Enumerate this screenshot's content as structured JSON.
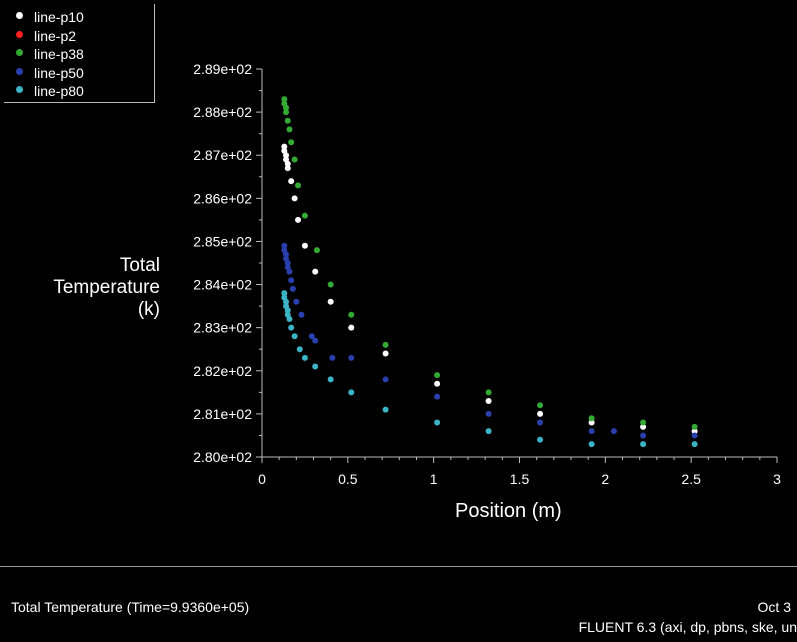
{
  "chart_data": {
    "type": "scatter",
    "title": "Total Temperature  (Time=9.9360e+05)",
    "xlabel": "Position (m)",
    "ylabel": [
      "Total",
      "Temperature",
      "(k)"
    ],
    "xlim": [
      0,
      3
    ],
    "ylim": [
      280.0,
      289.0
    ],
    "x_ticks": [
      0,
      0.5,
      1,
      1.5,
      2,
      2.5,
      3
    ],
    "x_tick_labels": [
      "0",
      "0.5",
      "1",
      "1.5",
      "2",
      "2.5",
      "3"
    ],
    "y_ticks": [
      280.0,
      281.0,
      282.0,
      283.0,
      284.0,
      285.0,
      286.0,
      287.0,
      288.0,
      289.0
    ],
    "y_tick_labels": [
      "2.80e+02",
      "2.81e+02",
      "2.82e+02",
      "2.83e+02",
      "2.84e+02",
      "2.85e+02",
      "2.86e+02",
      "2.87e+02",
      "2.88e+02",
      "2.89e+02"
    ],
    "legend_position": "top-left",
    "grid": false,
    "series": [
      {
        "name": "line-p10",
        "color": "#ffffff",
        "x": [
          0.13,
          0.13,
          0.14,
          0.14,
          0.15,
          0.15,
          0.17,
          0.19,
          0.21,
          0.25,
          0.31,
          0.4,
          0.52,
          0.72,
          1.02,
          1.32,
          1.62,
          1.92,
          2.22,
          2.52
        ],
        "y": [
          287.2,
          287.1,
          287.0,
          286.9,
          286.8,
          286.7,
          286.4,
          286.0,
          285.5,
          284.9,
          284.3,
          283.6,
          283.0,
          282.4,
          281.7,
          281.3,
          281.0,
          280.8,
          280.7,
          280.6
        ]
      },
      {
        "name": "line-p2",
        "color": "#ff2020",
        "x": [],
        "y": []
      },
      {
        "name": "line-p38",
        "color": "#33aa33",
        "x": [
          0.13,
          0.13,
          0.14,
          0.14,
          0.15,
          0.16,
          0.17,
          0.19,
          0.21,
          0.25,
          0.32,
          0.4,
          0.52,
          0.72,
          1.02,
          1.32,
          1.62,
          1.92,
          2.22,
          2.52
        ],
        "y": [
          288.3,
          288.2,
          288.1,
          288.0,
          287.8,
          287.6,
          287.3,
          286.9,
          286.3,
          285.6,
          284.8,
          284.0,
          283.3,
          282.6,
          281.9,
          281.5,
          281.2,
          280.9,
          280.8,
          280.7
        ]
      },
      {
        "name": "line-p50",
        "color": "#2a3fae",
        "x": [
          0.13,
          0.13,
          0.14,
          0.14,
          0.15,
          0.15,
          0.16,
          0.17,
          0.18,
          0.2,
          0.23,
          0.29,
          0.31,
          0.41,
          0.52,
          0.72,
          1.02,
          1.32,
          1.62,
          1.92,
          2.05,
          2.22,
          2.52
        ],
        "y": [
          284.9,
          284.8,
          284.7,
          284.6,
          284.5,
          284.4,
          284.3,
          284.1,
          283.9,
          283.6,
          283.3,
          282.8,
          282.7,
          282.3,
          282.3,
          281.8,
          281.4,
          281.0,
          280.8,
          280.6,
          280.6,
          280.5,
          280.5
        ]
      },
      {
        "name": "line-p80",
        "color": "#3cb4c8",
        "x": [
          0.13,
          0.13,
          0.14,
          0.14,
          0.15,
          0.15,
          0.16,
          0.17,
          0.19,
          0.22,
          0.25,
          0.31,
          0.4,
          0.52,
          0.72,
          1.02,
          1.32,
          1.62,
          1.92,
          2.22,
          2.52
        ],
        "y": [
          283.8,
          283.7,
          283.6,
          283.5,
          283.4,
          283.3,
          283.2,
          283.0,
          282.8,
          282.5,
          282.3,
          282.1,
          281.8,
          281.5,
          281.1,
          280.8,
          280.6,
          280.4,
          280.3,
          280.3,
          280.3
        ]
      }
    ]
  },
  "footer": {
    "title": "Total Temperature  (Time=9.9360e+05)",
    "date": "Oct 3",
    "version": "FLUENT 6.3 (axi, dp, pbns, ske, un"
  }
}
